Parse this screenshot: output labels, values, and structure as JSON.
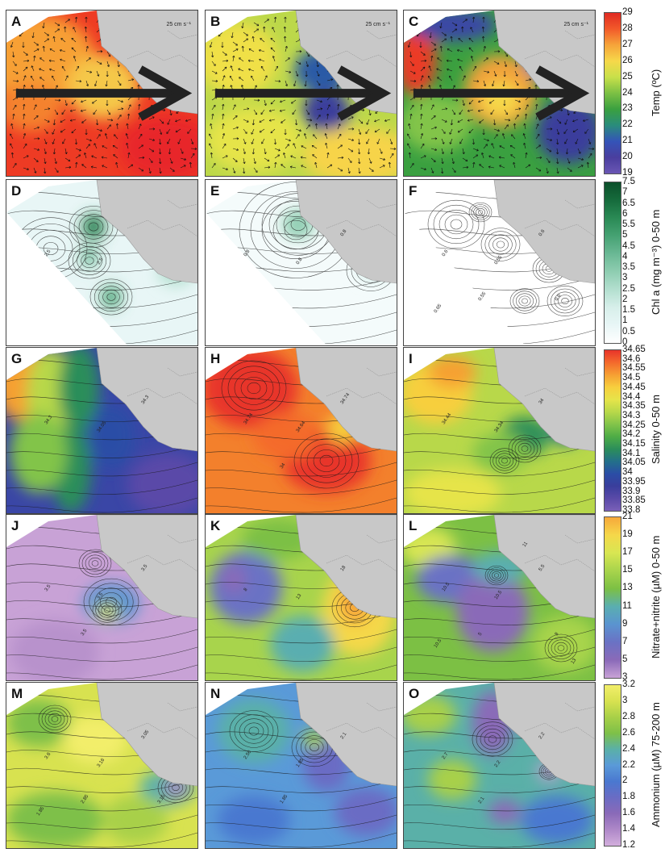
{
  "rows": [
    {
      "colorbar_title": "Temp (ºC)",
      "ticks": [
        "29",
        "28",
        "27",
        "26",
        "25",
        "24",
        "23",
        "22",
        "21",
        "20",
        "19"
      ],
      "gradient": [
        "#e02a22",
        "#f25a2a",
        "#f6a43a",
        "#f6d84a",
        "#c8e04a",
        "#7cc044",
        "#3aa040",
        "#2a8c7c",
        "#3454b8",
        "#4a3e9e",
        "#6a56b4"
      ],
      "panels": [
        {
          "label": "A",
          "scale_label": "25 cm s⁻¹",
          "theme": "warm"
        },
        {
          "label": "B",
          "scale_label": "25 cm s⁻¹",
          "theme": "mixed"
        },
        {
          "label": "C",
          "scale_label": "25 cm s⁻¹",
          "theme": "cool"
        }
      ]
    },
    {
      "colorbar_title": "Chl a (mg m⁻³) 0-50 m",
      "ticks": [
        "7.5",
        "7",
        "6.5",
        "6",
        "5.5",
        "5",
        "4.5",
        "4",
        "3.5",
        "3",
        "2.5",
        "2",
        "1.5",
        "1",
        "0.5",
        "0"
      ],
      "gradient": [
        "#0b4f2a",
        "#166b3c",
        "#2a8a55",
        "#46a273",
        "#6ab894",
        "#8ecdb1",
        "#b3dfcf",
        "#d7efea",
        "#e8f6f6",
        "#ffffff"
      ],
      "panels": [
        {
          "label": "D",
          "contour_labels": [
            "2.5",
            "2.5"
          ],
          "theme": "chl1"
        },
        {
          "label": "E",
          "contour_labels": [
            "0.8",
            "0.8",
            "0.8"
          ],
          "theme": "chl2"
        },
        {
          "label": "F",
          "contour_labels": [
            "0.6",
            "0.55",
            "0.6",
            "0.55",
            "0.6",
            "0.65"
          ],
          "theme": "chl3"
        }
      ]
    },
    {
      "colorbar_title": "Salinity 0-50 m",
      "ticks": [
        "34.65",
        "34.6",
        "34.55",
        "34.5",
        "34.45",
        "34.4",
        "34.35",
        "34.3",
        "34.25",
        "34.2",
        "34.15",
        "34.1",
        "34.05",
        "34",
        "33.95",
        "33.9",
        "33.85",
        "33.8"
      ],
      "gradient": [
        "#e8342a",
        "#f46a2c",
        "#f6a033",
        "#f7cf3e",
        "#e6e44a",
        "#b8d84a",
        "#82c44a",
        "#4eac46",
        "#2c8e5a",
        "#23708a",
        "#2a4ea6",
        "#3a3e9c",
        "#5a4aa8",
        "#7a60b8"
      ],
      "panels": [
        {
          "label": "G",
          "contour_labels": [
            "34.3",
            "34.05",
            "34.3"
          ],
          "theme": "sal1"
        },
        {
          "label": "H",
          "contour_labels": [
            "34.74",
            "34.64",
            "34.74",
            "34"
          ],
          "theme": "sal2"
        },
        {
          "label": "I",
          "contour_labels": [
            "34.44",
            "34.34",
            "34"
          ],
          "theme": "sal3"
        }
      ]
    },
    {
      "colorbar_title": "Nitrate+nitrite (µM) 0-50 m",
      "ticks": [
        "21",
        "19",
        "17",
        "15",
        "13",
        "11",
        "9",
        "7",
        "5",
        "3"
      ],
      "gradient": [
        "#f7a83a",
        "#f5d84a",
        "#d8e652",
        "#a8d44c",
        "#7cc044",
        "#5aaeb0",
        "#5a94d0",
        "#6a72c4",
        "#8a6ab8",
        "#c8a2d6"
      ],
      "panels": [
        {
          "label": "J",
          "contour_labels": [
            "3.5",
            "3.5",
            "3.5",
            "3.5"
          ],
          "theme": "nit1"
        },
        {
          "label": "K",
          "contour_labels": [
            "8",
            "13",
            "18"
          ],
          "theme": "nit2"
        },
        {
          "label": "L",
          "contour_labels": [
            "10.5",
            "10.5",
            "5.5",
            "5",
            "8",
            "10.5",
            "11",
            "13"
          ],
          "theme": "nit3"
        }
      ]
    },
    {
      "colorbar_title": "Ammonium (µM) 75-200 m",
      "ticks": [
        "3.2",
        "3",
        "2.8",
        "2.6",
        "2.4",
        "2.2",
        "2",
        "1.8",
        "1.6",
        "1.4",
        "1.2"
      ],
      "gradient": [
        "#f2ee6a",
        "#d8e250",
        "#a8d048",
        "#7ec048",
        "#5ab0a8",
        "#5a9ad8",
        "#4a78d0",
        "#6a6cc4",
        "#8a6ab8",
        "#ae88c8",
        "#d2aedc"
      ],
      "panels": [
        {
          "label": "M",
          "contour_labels": [
            "3.6",
            "3.16",
            "3.05",
            "2.85",
            "3.15",
            "1.85"
          ],
          "theme": "amm1"
        },
        {
          "label": "N",
          "contour_labels": [
            "2.56",
            "1.85",
            "2.1",
            "1.85"
          ],
          "theme": "amm2"
        },
        {
          "label": "O",
          "contour_labels": [
            "2.7",
            "2.2",
            "2.2",
            "2.1"
          ],
          "theme": "amm3"
        }
      ]
    }
  ],
  "colors": {
    "land": "#c8c8c8",
    "border": "#444444",
    "contour": "#1a1a1a"
  }
}
